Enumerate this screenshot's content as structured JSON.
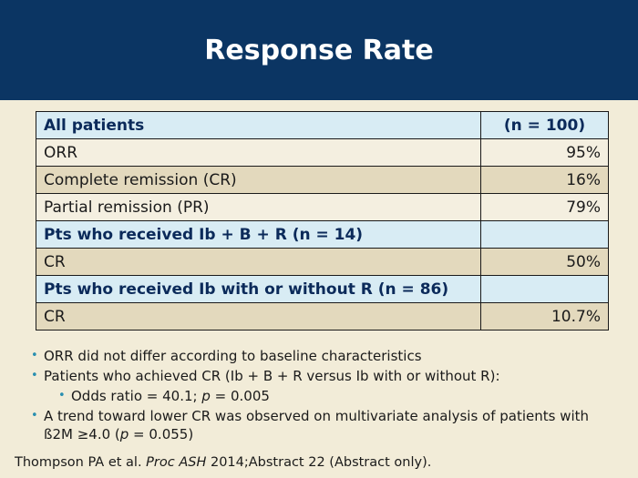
{
  "title": "Response Rate",
  "table": {
    "header": {
      "label": "All patients",
      "value": "(n = 100)"
    },
    "rows": [
      {
        "label": "ORR",
        "value": "95%"
      },
      {
        "label": "Complete remission (CR)",
        "value": "16%"
      },
      {
        "label": "Partial remission (PR)",
        "value": "79%"
      },
      {
        "label": "Pts who received Ib + B + R (n = 14)",
        "value": ""
      },
      {
        "label": "CR",
        "value": "50%"
      },
      {
        "label": "Pts who received Ib with or without R (n = 86)",
        "value": ""
      },
      {
        "label": "CR",
        "value": "10.7%"
      }
    ]
  },
  "notes": {
    "b1": "ORR did not differ according to baseline characteristics",
    "b2": "Patients who achieved CR (Ib + B + R versus Ib with or without R):",
    "b3_pre": "Odds ratio = 40.1; ",
    "b3_p": "p",
    "b3_post": " = 0.005",
    "b4_pre": "A trend toward lower CR was observed on multivariate analysis of patients with ß2M ≥4.0 (",
    "b4_p": "p",
    "b4_post": " = 0.055)"
  },
  "citation": {
    "pre": "Thompson PA et al. ",
    "journal": "Proc ASH",
    "post": " 2014;Abstract 22 (Abstract only)."
  }
}
